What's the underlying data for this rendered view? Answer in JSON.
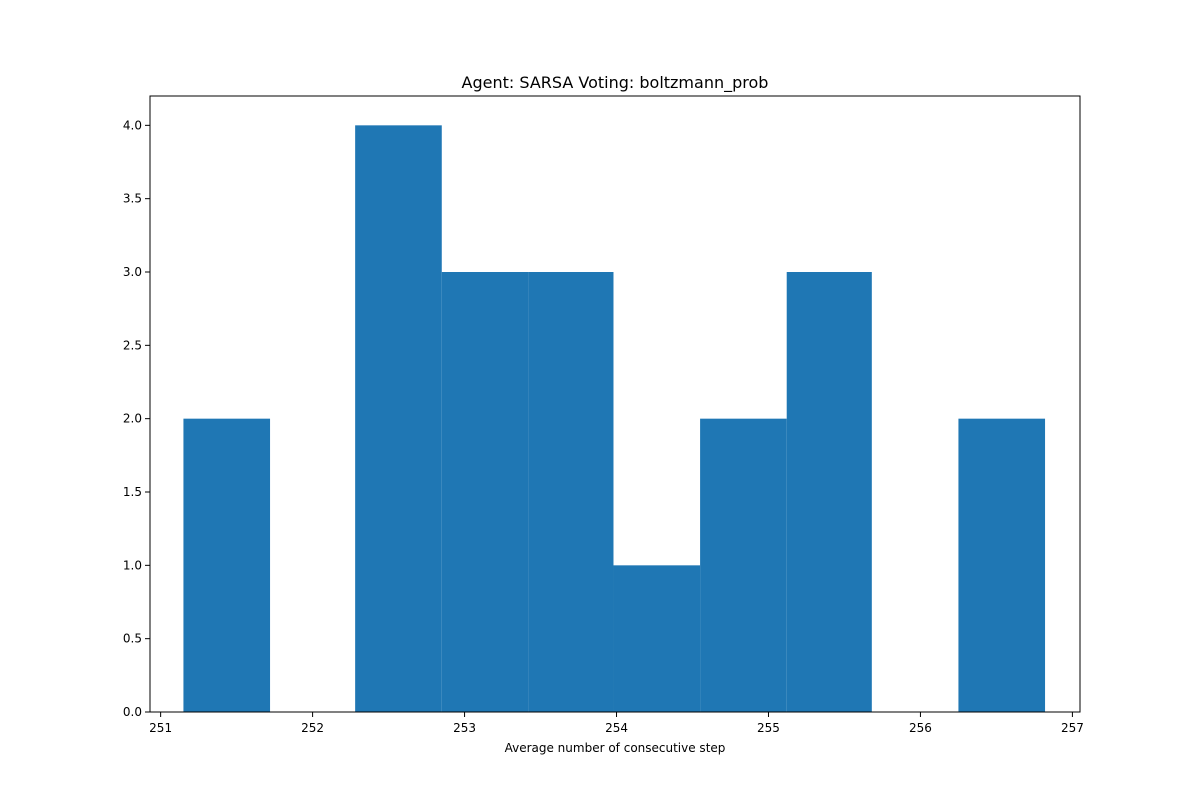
{
  "chart_data": {
    "type": "bar",
    "subtype": "histogram",
    "title": "Agent: SARSA Voting: boltzmann_prob",
    "xlabel": "Average number of consecutive step",
    "ylabel": "",
    "bin_edges": [
      251.15,
      251.72,
      252.28,
      252.85,
      253.42,
      253.98,
      254.55,
      255.12,
      255.68,
      256.25,
      256.82
    ],
    "counts": [
      2,
      0,
      4,
      3,
      3,
      1,
      2,
      3,
      0,
      2
    ],
    "xlim": [
      250.93,
      257.05
    ],
    "ylim": [
      0,
      4.2
    ],
    "xticks": [
      251,
      252,
      253,
      254,
      255,
      256,
      257
    ],
    "yticks": [
      0.0,
      0.5,
      1.0,
      1.5,
      2.0,
      2.5,
      3.0,
      3.5,
      4.0
    ],
    "xtick_labels": [
      "251",
      "252",
      "253",
      "254",
      "255",
      "256",
      "257"
    ],
    "ytick_labels": [
      "0.0",
      "0.5",
      "1.0",
      "1.5",
      "2.0",
      "2.5",
      "3.0",
      "3.5",
      "4.0"
    ],
    "bar_color": "#1f77b4",
    "grid": false,
    "legend": "none"
  }
}
